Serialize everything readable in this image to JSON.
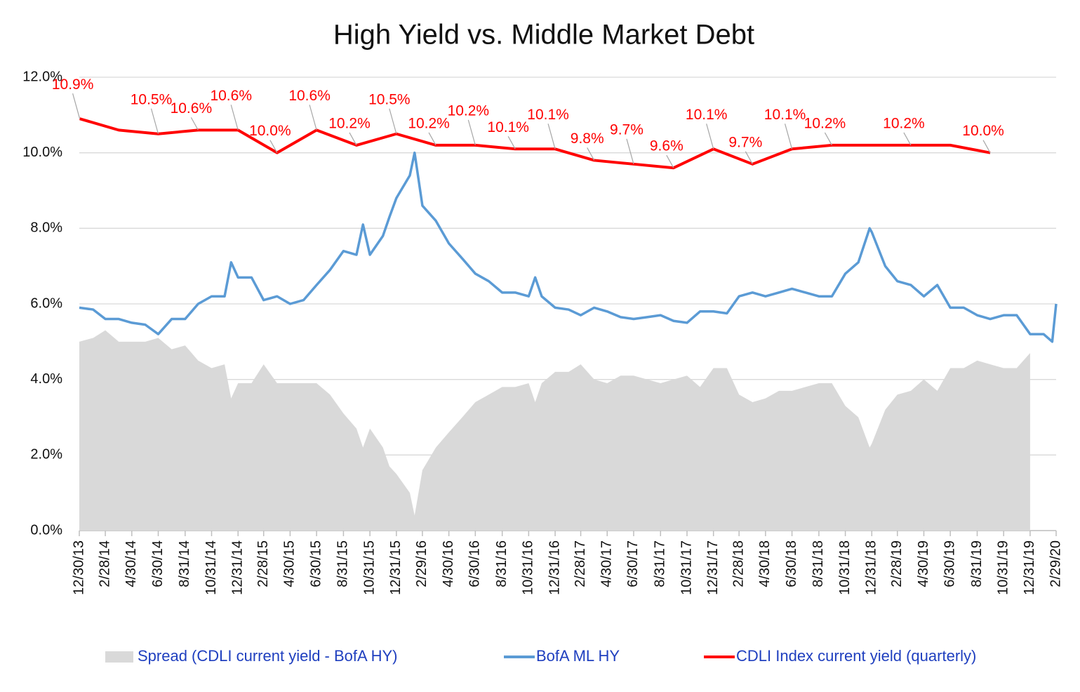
{
  "chart_data": {
    "type": "line",
    "title": "High Yield vs. Middle Market Debt",
    "xlim": [
      "12/30/13",
      "2/29/20"
    ],
    "xticks": [
      "12/30/13",
      "2/28/14",
      "4/30/14",
      "6/30/14",
      "8/31/14",
      "10/31/14",
      "12/31/14",
      "2/28/15",
      "4/30/15",
      "6/30/15",
      "8/31/15",
      "10/31/15",
      "12/31/15",
      "2/29/16",
      "4/30/16",
      "6/30/16",
      "8/31/16",
      "10/31/16",
      "12/31/16",
      "2/28/17",
      "4/30/17",
      "6/30/17",
      "8/31/17",
      "10/31/17",
      "12/31/17",
      "2/28/18",
      "4/30/18",
      "6/30/18",
      "8/31/18",
      "10/31/18",
      "12/31/18",
      "2/28/19",
      "4/30/19",
      "6/30/19",
      "8/31/19",
      "10/31/19",
      "12/31/19",
      "2/29/20"
    ],
    "ylim": [
      0,
      12
    ],
    "yticks": [
      {
        "value": 0,
        "label": "0.0%"
      },
      {
        "value": 2,
        "label": "2.0%"
      },
      {
        "value": 4,
        "label": "4.0%"
      },
      {
        "value": 6,
        "label": "6.0%"
      },
      {
        "value": 8,
        "label": "8.0%"
      },
      {
        "value": 10,
        "label": "10.0%"
      },
      {
        "value": 12,
        "label": "12.0%"
      }
    ],
    "grid": true,
    "legend": "bottom",
    "x": [
      "12/30/13",
      "1/31/14",
      "2/28/14",
      "3/31/14",
      "4/30/14",
      "5/31/14",
      "6/30/14",
      "7/31/14",
      "8/31/14",
      "9/30/14",
      "10/31/14",
      "11/30/14",
      "12/15/14",
      "12/31/14",
      "1/31/15",
      "2/28/15",
      "3/31/15",
      "4/30/15",
      "5/31/15",
      "6/30/15",
      "7/31/15",
      "8/31/15",
      "9/30/15",
      "10/15/15",
      "10/31/15",
      "11/30/15",
      "12/15/15",
      "12/31/15",
      "1/31/16",
      "2/11/16",
      "2/29/16",
      "3/31/16",
      "4/30/16",
      "5/31/16",
      "6/30/16",
      "7/31/16",
      "8/31/16",
      "9/30/16",
      "10/31/16",
      "11/15/16",
      "11/30/16",
      "12/31/16",
      "1/31/17",
      "2/28/17",
      "3/31/17",
      "4/30/17",
      "5/31/17",
      "6/30/17",
      "7/31/17",
      "8/31/17",
      "9/30/17",
      "10/31/17",
      "11/30/17",
      "12/31/17",
      "1/31/18",
      "2/28/18",
      "3/31/18",
      "4/30/18",
      "5/31/18",
      "6/30/18",
      "7/31/18",
      "8/31/18",
      "9/30/18",
      "10/31/18",
      "11/30/18",
      "12/26/18",
      "12/31/18",
      "1/31/19",
      "2/28/19",
      "3/31/19",
      "4/30/19",
      "5/31/19",
      "6/30/19",
      "7/31/19",
      "8/31/19",
      "9/30/19",
      "10/31/19",
      "11/30/19",
      "12/31/19",
      "1/31/20",
      "2/20/20",
      "2/29/20"
    ],
    "series": [
      {
        "name": "Spread (CDLI current yield - BofA HY)",
        "kind": "area",
        "color": "#d9d9d9",
        "values": [
          5.0,
          5.1,
          5.3,
          5.0,
          5.0,
          5.0,
          5.1,
          4.8,
          4.9,
          4.5,
          4.3,
          4.4,
          3.5,
          3.9,
          3.9,
          4.4,
          3.9,
          3.9,
          3.9,
          3.9,
          3.6,
          3.1,
          2.7,
          2.2,
          2.7,
          2.2,
          1.7,
          1.5,
          1.0,
          0.4,
          1.6,
          2.2,
          2.6,
          3.0,
          3.4,
          3.6,
          3.8,
          3.8,
          3.9,
          3.4,
          3.9,
          4.2,
          4.2,
          4.4,
          4.0,
          3.9,
          4.1,
          4.1,
          4.0,
          3.9,
          4.0,
          4.1,
          3.8,
          4.3,
          4.3,
          3.6,
          3.4,
          3.5,
          3.7,
          3.7,
          3.8,
          3.9,
          3.9,
          3.3,
          3.0,
          2.2,
          2.3,
          3.2,
          3.6,
          3.7,
          4.0,
          3.7,
          4.3,
          4.3,
          4.5,
          4.4,
          4.3,
          4.3,
          4.7,
          null,
          null,
          null
        ]
      },
      {
        "name": "BofA ML HY",
        "kind": "line",
        "color": "#5b9bd5",
        "values": [
          5.9,
          5.85,
          5.6,
          5.6,
          5.5,
          5.45,
          5.2,
          5.6,
          5.6,
          6.0,
          6.2,
          6.2,
          7.1,
          6.7,
          6.7,
          6.1,
          6.2,
          6.0,
          6.1,
          6.5,
          6.9,
          7.4,
          7.3,
          8.1,
          7.3,
          7.8,
          8.3,
          8.8,
          9.4,
          10.0,
          8.6,
          8.2,
          7.6,
          7.2,
          6.8,
          6.6,
          6.3,
          6.3,
          6.2,
          6.7,
          6.2,
          5.9,
          5.85,
          5.7,
          5.9,
          5.8,
          5.65,
          5.6,
          5.65,
          5.7,
          5.55,
          5.5,
          5.8,
          5.8,
          5.75,
          6.2,
          6.3,
          6.2,
          6.3,
          6.4,
          6.3,
          6.2,
          6.2,
          6.8,
          7.1,
          8.0,
          7.9,
          7.0,
          6.6,
          6.5,
          6.2,
          6.5,
          5.9,
          5.9,
          5.7,
          5.6,
          5.7,
          5.7,
          5.2,
          5.2,
          5.0,
          6.0
        ]
      },
      {
        "name": "CDLI Index current yield (quarterly)",
        "kind": "line",
        "color": "#ff0000",
        "x": [
          "12/31/13",
          "3/31/14",
          "6/30/14",
          "9/30/14",
          "12/31/14",
          "3/31/15",
          "6/30/15",
          "9/30/15",
          "12/31/15",
          "3/31/16",
          "6/30/16",
          "9/30/16",
          "12/31/16",
          "3/31/17",
          "6/30/17",
          "9/30/17",
          "12/31/17",
          "3/31/18",
          "6/30/18",
          "9/30/18",
          "12/31/18",
          "3/31/19",
          "6/30/19",
          "9/30/19"
        ],
        "values": [
          10.9,
          10.6,
          10.5,
          10.6,
          10.6,
          10.0,
          10.6,
          10.2,
          10.5,
          10.2,
          10.2,
          10.1,
          10.1,
          9.8,
          9.7,
          9.6,
          10.1,
          9.7,
          10.1,
          10.2,
          10.2,
          10.2,
          10.2,
          10.0
        ],
        "value_labels": [
          "10.9%",
          null,
          "10.5%",
          "10.6%",
          "10.6%",
          "10.0%",
          "10.6%",
          "10.2%",
          "10.5%",
          "10.2%",
          "10.2%",
          "10.1%",
          "10.1%",
          "9.8%",
          "9.7%",
          "9.6%",
          "10.1%",
          "9.7%",
          "10.1%",
          "10.2%",
          null,
          "10.2%",
          null,
          "10.0%"
        ]
      }
    ]
  }
}
